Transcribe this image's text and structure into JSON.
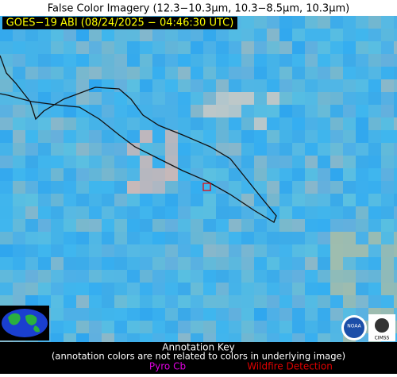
{
  "header": {
    "title": "False Color Imagery (12.3−10.3µm, 10.3−8.5µm, 10.3µm)",
    "timestamp": "GOES−19 ABI (08/24/2025 − 04:46:30 UTC)"
  },
  "logos": [
    "NOAA",
    "CIMSS"
  ],
  "annotation_key": {
    "title": "Annotation Key",
    "note": "(annotation colors are not related to colors in underlying image)",
    "items": [
      "Pyro Cb",
      "Wildfire Detection"
    ]
  }
}
